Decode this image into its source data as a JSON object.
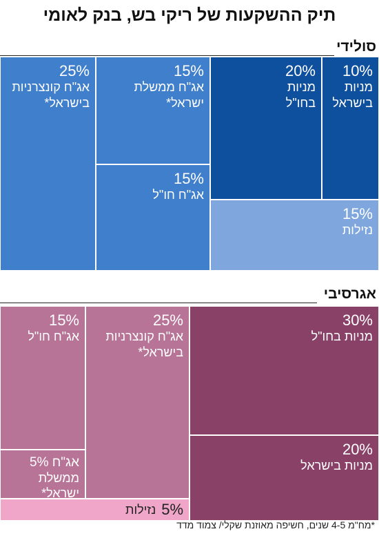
{
  "title": "תיק ההשקעות של ריקי בש, בנק לאומי",
  "footnote": "*מח\"מ 4-5 שנים, חשיפה מאוזנת שקלי/ צמוד מדד",
  "chart_data": [
    {
      "type": "treemap",
      "title": "סולידי",
      "items": [
        {
          "label": "אג\"ח קונצרניות\nבישראל*",
          "pct": "25%",
          "value": 25,
          "color": "#3f7fcb"
        },
        {
          "label": "אג\"ח ממשלת\nישראל*",
          "pct": "15%",
          "value": 15,
          "color": "#3f7fcb"
        },
        {
          "label": "אג\"ח חו\"ל",
          "pct": "15%",
          "value": 15,
          "color": "#3f7fcb"
        },
        {
          "label": "מניות\nבחו\"ל",
          "pct": "20%",
          "value": 20,
          "color": "#0e4f9e"
        },
        {
          "label": "מניות\nבישראל",
          "pct": "10%",
          "value": 10,
          "color": "#0e4f9e"
        },
        {
          "label": "נזילות",
          "pct": "15%",
          "value": 15,
          "color": "#7fa7de"
        }
      ]
    },
    {
      "type": "treemap",
      "title": "אגרסיבי",
      "items": [
        {
          "label": "מניות בחו\"ל",
          "pct": "30%",
          "value": 30,
          "color": "#8a4168"
        },
        {
          "label": "מניות בישראל",
          "pct": "20%",
          "value": 20,
          "color": "#8a4168"
        },
        {
          "label": "אג\"ח קונצרניות\nבישראל*",
          "pct": "25%",
          "value": 25,
          "color": "#b87497"
        },
        {
          "label": "אג\"ח חו\"ל",
          "pct": "15%",
          "value": 15,
          "color": "#b87497"
        },
        {
          "label": "ממשלת ישראל*",
          "pct": "5% אג\"ח",
          "value": 5,
          "color": "#b87497"
        },
        {
          "label": "נזילות",
          "pct": "5%",
          "value": 5,
          "color": "#f0a6c8"
        }
      ]
    }
  ]
}
